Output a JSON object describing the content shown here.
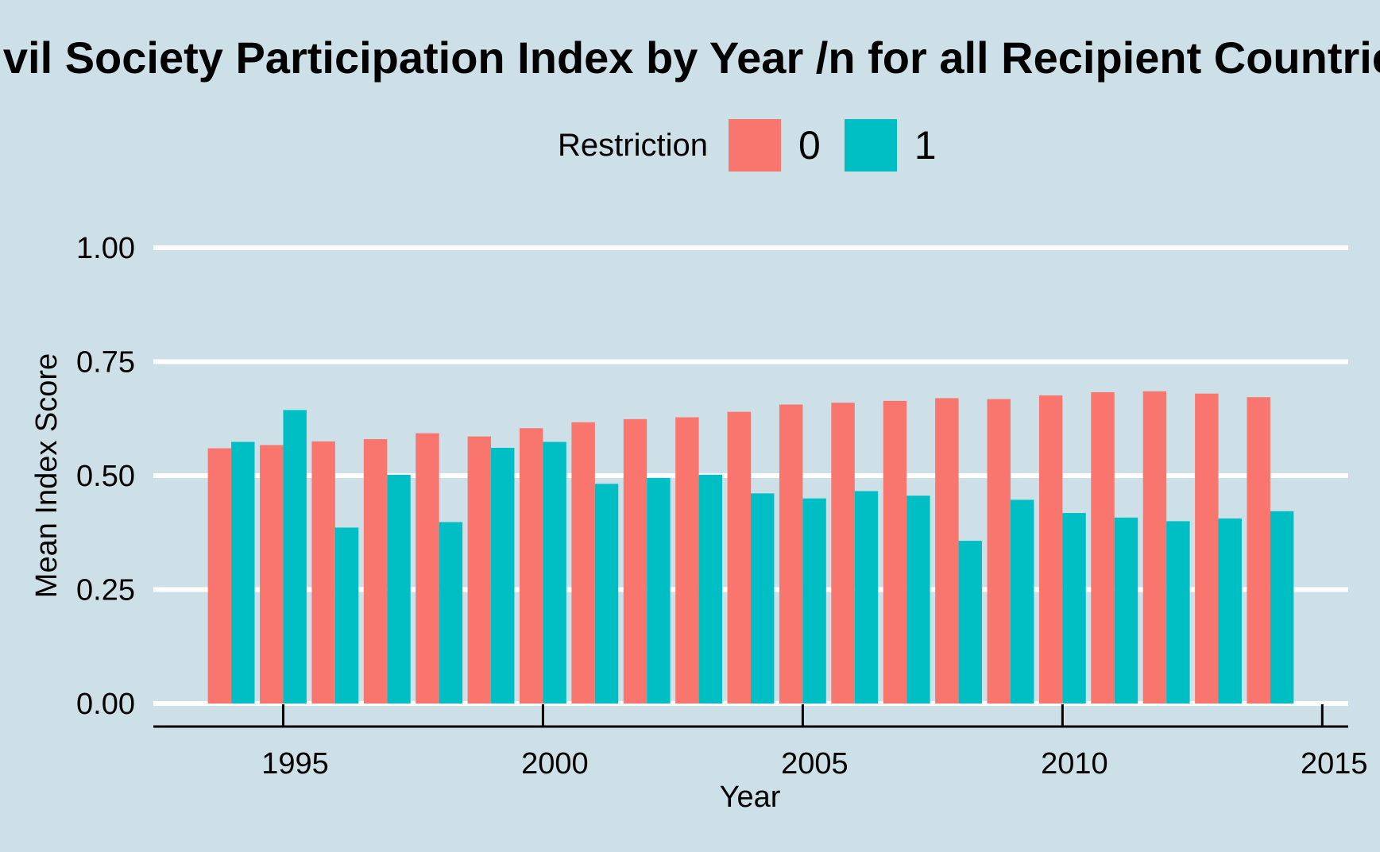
{
  "chart_data": {
    "type": "bar",
    "title": "Civil Society Participation Index by Year /n for all Recipient Countries",
    "xlabel": "Year",
    "ylabel": "Mean Index Score",
    "legend": {
      "title": "Restriction",
      "position": "top"
    },
    "x": [
      1994,
      1995,
      1996,
      1997,
      1998,
      1999,
      2000,
      2001,
      2002,
      2003,
      2004,
      2005,
      2006,
      2007,
      2008,
      2009,
      2010,
      2011,
      2012,
      2013,
      2014
    ],
    "series": [
      {
        "name": "0",
        "color": "#F8766D",
        "values": [
          0.56,
          0.567,
          0.575,
          0.58,
          0.593,
          0.586,
          0.604,
          0.617,
          0.624,
          0.628,
          0.64,
          0.656,
          0.66,
          0.664,
          0.67,
          0.668,
          0.676,
          0.683,
          0.685,
          0.68,
          0.672
        ]
      },
      {
        "name": "1",
        "color": "#00BFC4",
        "values": [
          0.574,
          0.644,
          0.386,
          0.502,
          0.398,
          0.561,
          0.574,
          0.482,
          0.495,
          0.502,
          0.461,
          0.45,
          0.466,
          0.456,
          0.357,
          0.447,
          0.418,
          0.408,
          0.4,
          0.406,
          0.422
        ]
      }
    ],
    "xlim": [
      1992.5,
      2015.5
    ],
    "ylim": [
      0,
      1
    ],
    "xticks": [
      "1995",
      "2000",
      "2005",
      "2010",
      "2015"
    ],
    "yticks": [
      "0.00",
      "0.25",
      "0.50",
      "0.75",
      "1.00"
    ],
    "grid": "horizontal-major",
    "colors": {
      "background": "#CDE0E7",
      "gridline": "#FFFFFF",
      "axis": "#000000"
    }
  }
}
